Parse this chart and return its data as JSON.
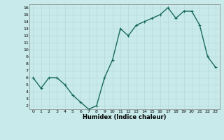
{
  "x": [
    0,
    1,
    2,
    3,
    4,
    5,
    6,
    7,
    8,
    9,
    10,
    11,
    12,
    13,
    14,
    15,
    16,
    17,
    18,
    19,
    20,
    21,
    22,
    23
  ],
  "y": [
    6,
    4.5,
    6,
    6,
    5,
    3.5,
    2.5,
    1.5,
    2,
    6,
    8.5,
    13,
    12,
    13.5,
    14,
    14.5,
    15,
    16,
    14.5,
    15.5,
    15.5,
    13.5,
    9,
    7.5
  ],
  "line_color": "#1a6b5a",
  "marker_color": "#1a6b5a",
  "bg_color": "#c8eaea",
  "grid_color": "#b8d8d8",
  "xlabel": "Humidex (Indice chaleur)",
  "xlim": [
    -0.5,
    23.5
  ],
  "ylim": [
    1.5,
    16.5
  ],
  "yticks": [
    2,
    3,
    4,
    5,
    6,
    7,
    8,
    9,
    10,
    11,
    12,
    13,
    14,
    15,
    16
  ],
  "xticks": [
    0,
    1,
    2,
    3,
    4,
    5,
    6,
    7,
    8,
    9,
    10,
    11,
    12,
    13,
    14,
    15,
    16,
    17,
    18,
    19,
    20,
    21,
    22,
    23
  ],
  "figsize": [
    3.2,
    2.0
  ],
  "dpi": 100,
  "linewidth": 1.0,
  "markersize": 3.0
}
